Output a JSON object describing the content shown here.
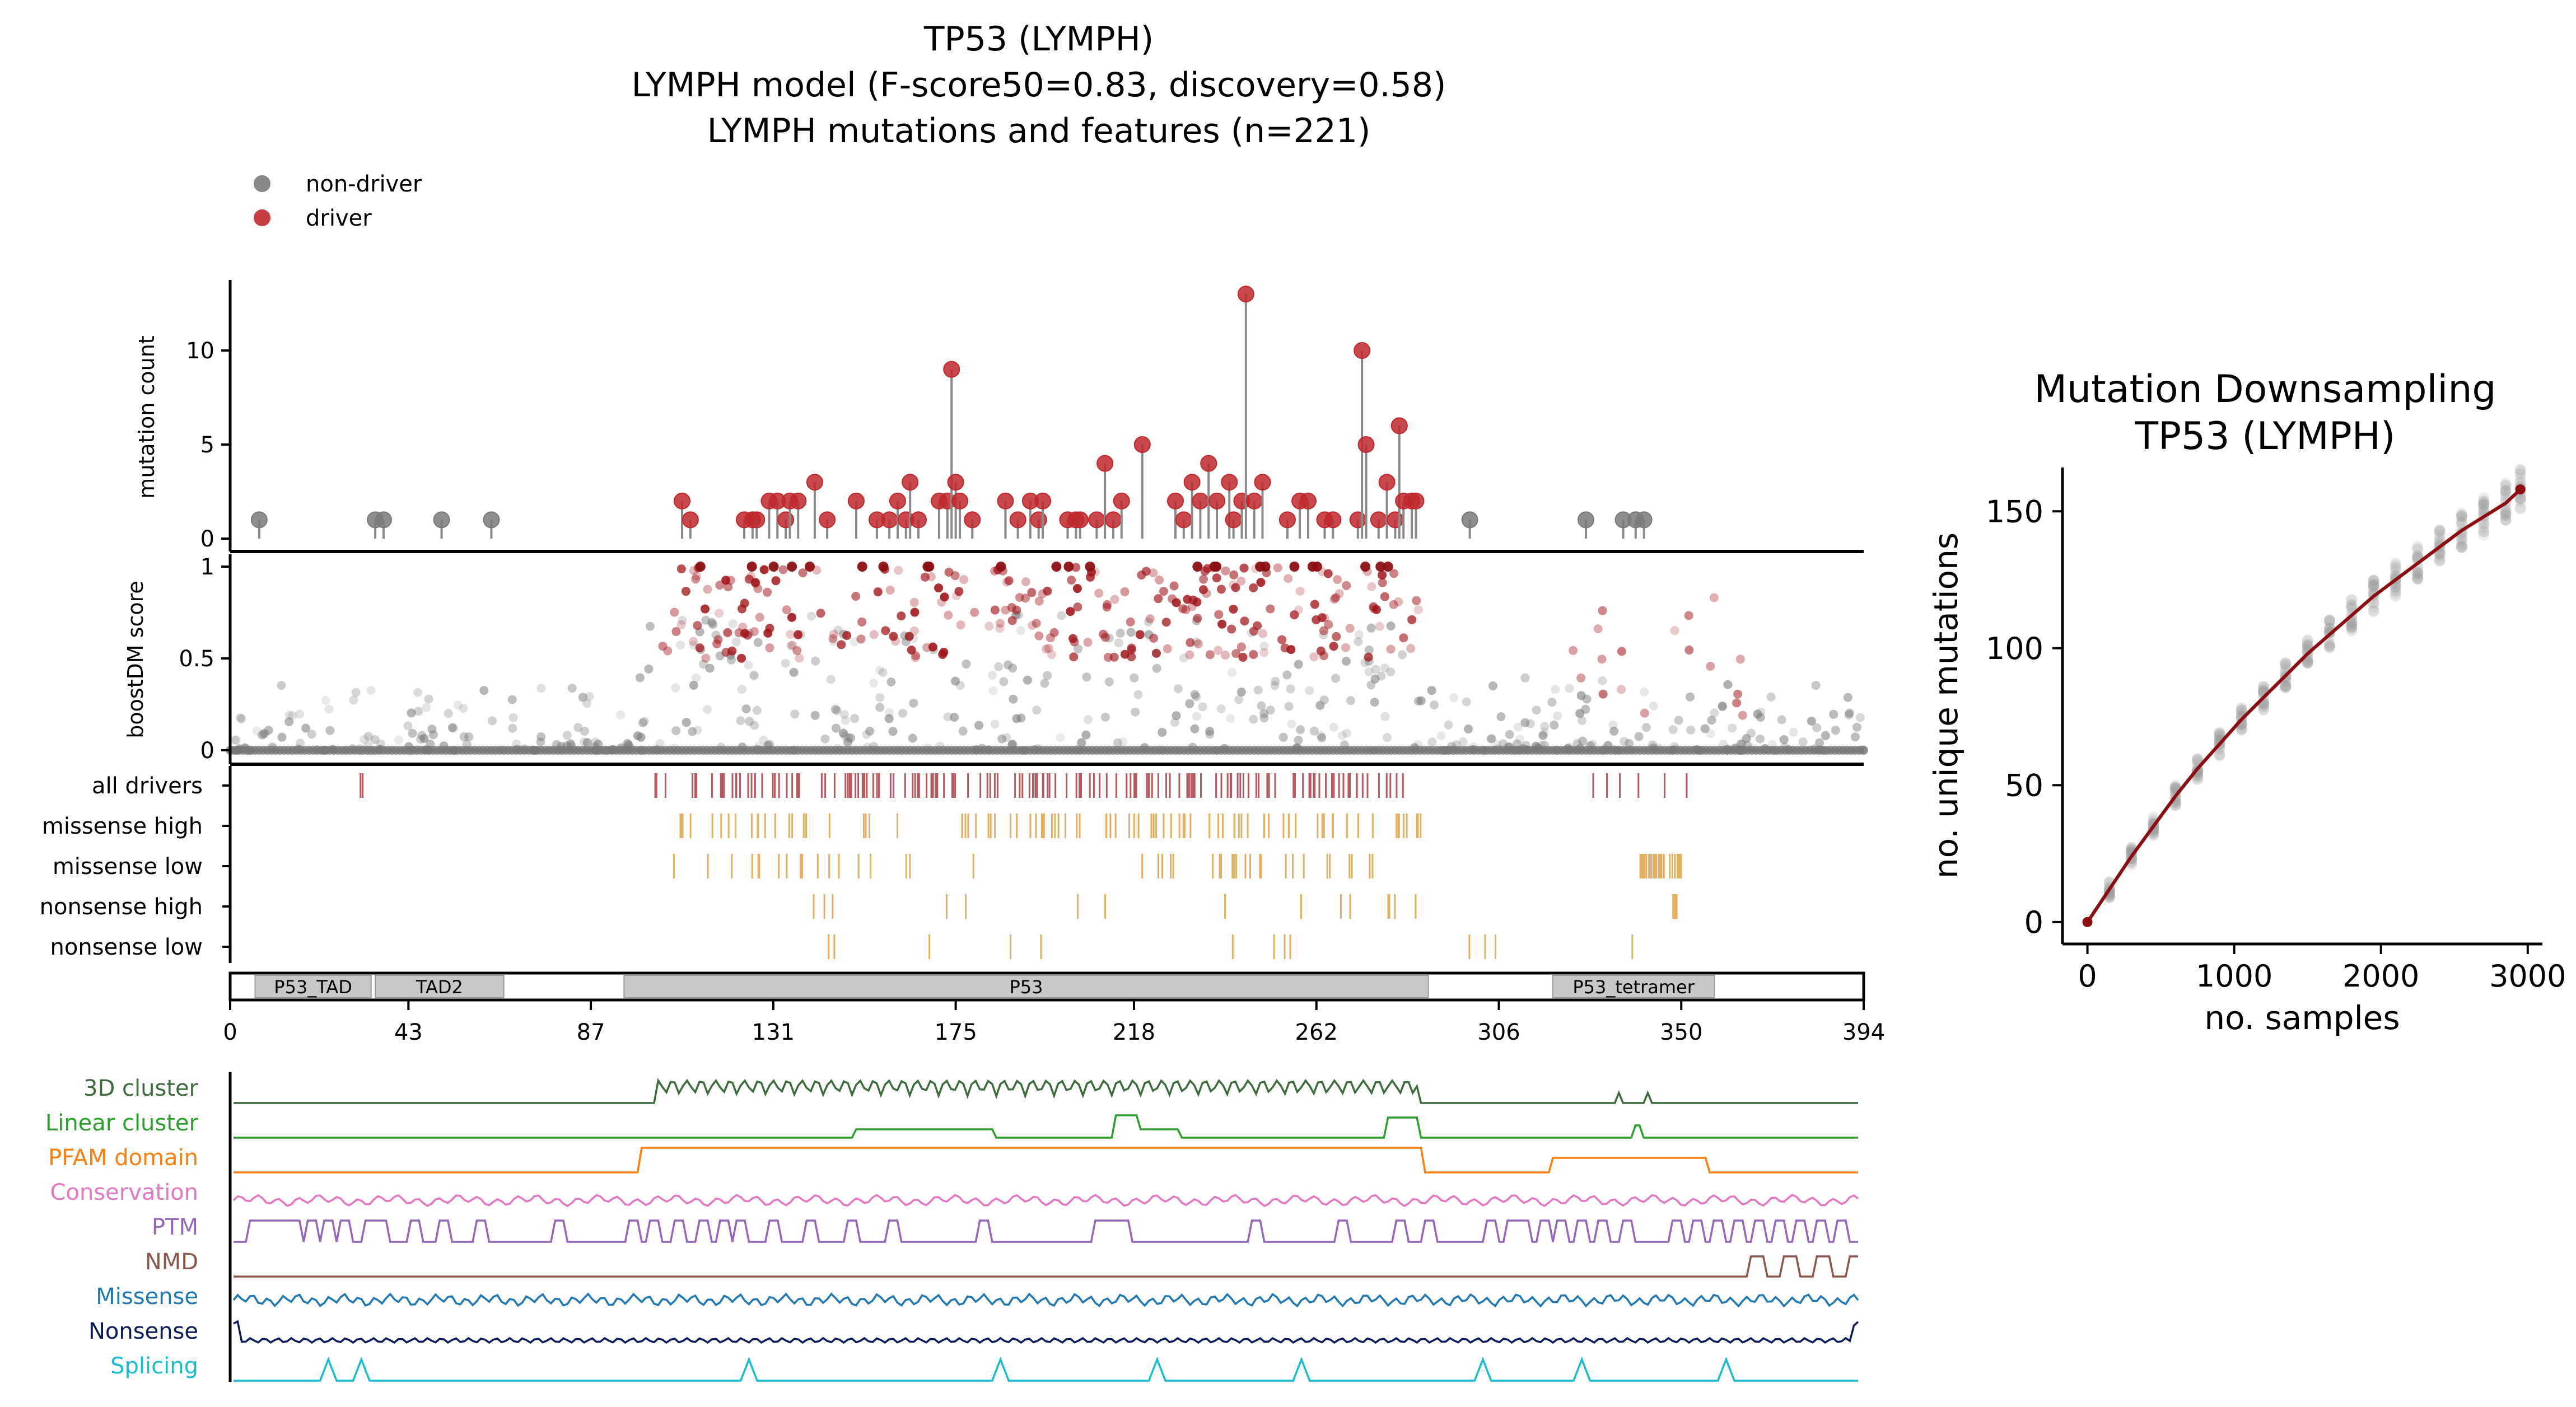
{
  "main_title": {
    "line1": "TP53 (LYMPH)",
    "line2": "LYMPH model (F-score50=0.83, discovery=0.58)",
    "line3": "LYMPH mutations and features (n=221)"
  },
  "legend": {
    "items": [
      "non-driver",
      "driver"
    ],
    "colors": [
      "#7a7a7a",
      "#c0282d"
    ]
  },
  "colors": {
    "driver": "#c0282d",
    "non_driver": "#7a7a7a",
    "driver_tick": "#b9575e",
    "tier_tick": "#e3b060",
    "domain_fill": "#c8c8c8",
    "downsample_line": "#8b0f12"
  },
  "panels": {
    "mutation_count_label": "mutation count",
    "boostdm_label": "boostDM score",
    "count_ticks": [
      "0",
      "5",
      "10"
    ],
    "score_ticks": [
      "0",
      "0.5",
      "1"
    ]
  },
  "tier_rows": [
    "all drivers",
    "missense high",
    "missense low",
    "nonsense high",
    "nonsense low"
  ],
  "domains": [
    {
      "name": "P53_TAD",
      "start": 6,
      "end": 34
    },
    {
      "name": "TAD2",
      "start": 35,
      "end": 66
    },
    {
      "name": "P53",
      "start": 95,
      "end": 289
    },
    {
      "name": "P53_tetramer",
      "start": 319,
      "end": 358
    }
  ],
  "protein_axis": {
    "length": 394,
    "ticks": [
      "0",
      "43",
      "87",
      "131",
      "175",
      "218",
      "262",
      "306",
      "350",
      "394"
    ]
  },
  "feature_tracks": [
    {
      "name": "3D cluster",
      "color": "#3d6b3d"
    },
    {
      "name": "Linear cluster",
      "color": "#2ca02c"
    },
    {
      "name": "PFAM domain",
      "color": "#ff7f0e"
    },
    {
      "name": "Conservation",
      "color": "#e377c2"
    },
    {
      "name": "PTM",
      "color": "#9467bd"
    },
    {
      "name": "NMD",
      "color": "#8c564b"
    },
    {
      "name": "Missense",
      "color": "#1f77b4"
    },
    {
      "name": "Nonsense",
      "color": "#0b1a5a"
    },
    {
      "name": "Splicing",
      "color": "#17becf"
    }
  ],
  "chart_data": [
    {
      "type": "scatter",
      "title": "mutation count",
      "ylabel": "mutation count",
      "xlim": [
        0,
        394
      ],
      "ylim": [
        0,
        13
      ],
      "non_driver": {
        "x": [
          7,
          35,
          37,
          51,
          63,
          299,
          327,
          336,
          339,
          341
        ],
        "y": [
          1,
          1,
          1,
          1,
          1,
          1,
          1,
          1,
          1,
          1
        ]
      },
      "driver": {
        "x": [
          109,
          111,
          124,
          126,
          127,
          130,
          132,
          134,
          135,
          137,
          141,
          144,
          151,
          156,
          159,
          161,
          163,
          164,
          166,
          171,
          173,
          174,
          175,
          176,
          179,
          187,
          190,
          193,
          195,
          196,
          202,
          204,
          205,
          209,
          211,
          213,
          215,
          220,
          228,
          230,
          232,
          234,
          236,
          238,
          241,
          242,
          244,
          245,
          247,
          249,
          255,
          258,
          260,
          264,
          266,
          272,
          273,
          274,
          277,
          279,
          281,
          282,
          283,
          285,
          286
        ],
        "y": [
          2,
          1,
          1,
          1,
          1,
          2,
          2,
          1,
          2,
          2,
          3,
          1,
          2,
          1,
          1,
          2,
          1,
          3,
          1,
          2,
          2,
          9,
          3,
          2,
          1,
          2,
          1,
          2,
          1,
          2,
          1,
          1,
          1,
          1,
          4,
          1,
          2,
          5,
          2,
          1,
          3,
          2,
          4,
          2,
          3,
          1,
          2,
          13,
          2,
          3,
          1,
          2,
          2,
          1,
          1,
          1,
          10,
          5,
          1,
          3,
          1,
          6,
          2,
          2,
          2
        ]
      }
    },
    {
      "type": "line",
      "title": "Mutation Downsampling\nTP53 (LYMPH)",
      "xlabel": "no. samples",
      "ylabel": "no. unique mutations",
      "xlim": [
        -170,
        3100
      ],
      "ylim": [
        -8,
        166
      ],
      "xticks": [
        "0",
        "1000",
        "2000",
        "3000"
      ],
      "yticks": [
        "0",
        "50",
        "100",
        "150"
      ],
      "x": [
        0,
        150,
        300,
        450,
        600,
        750,
        900,
        1050,
        1200,
        1350,
        1500,
        1650,
        1800,
        1950,
        2100,
        2250,
        2400,
        2550,
        2700,
        2850,
        2950
      ],
      "y": [
        0,
        12,
        24,
        35,
        46,
        56,
        65,
        74,
        82,
        90,
        98,
        105,
        112,
        119,
        125,
        131,
        137,
        143,
        148,
        153,
        158
      ]
    }
  ]
}
